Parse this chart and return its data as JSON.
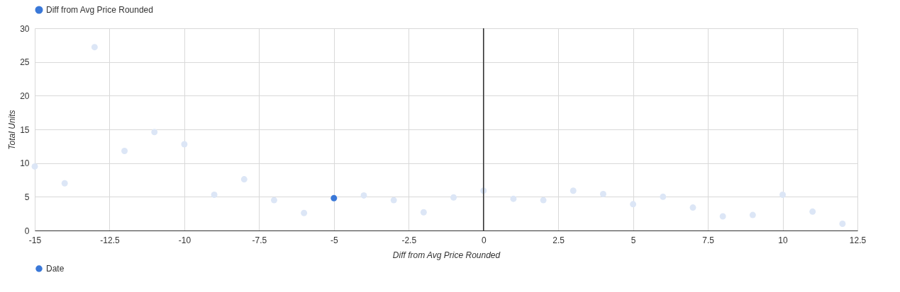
{
  "chart_data": {
    "type": "scatter",
    "xlabel": "Diff from Avg Price Rounded",
    "ylabel": "Total Units",
    "x": [
      -15,
      -14,
      -13,
      -12,
      -11,
      -10,
      -9,
      -8,
      -7,
      -6,
      -5,
      -4,
      -3,
      -2,
      -1,
      0,
      1,
      2,
      3,
      4,
      5,
      6,
      7,
      8,
      9,
      10,
      11,
      12
    ],
    "series": [
      {
        "name": "Diff from Avg Price Rounded",
        "color": "#3a78d8",
        "values": [
          9.5,
          7.0,
          27.2,
          11.8,
          14.6,
          12.8,
          5.3,
          7.6,
          4.5,
          2.6,
          4.8,
          5.2,
          4.5,
          2.7,
          4.9,
          5.9,
          4.7,
          4.5,
          5.9,
          5.4,
          3.9,
          5.0,
          3.4,
          2.1,
          2.3,
          5.3,
          2.8,
          1.0
        ],
        "colors": [
          "#dce6f6",
          "#dce6f6",
          "#dce6f6",
          "#dce6f6",
          "#dce6f6",
          "#dce6f6",
          "#dce6f6",
          "#dce6f6",
          "#dce6f6",
          "#dce6f6",
          "#3a78d8",
          "#dce6f6",
          "#dce6f6",
          "#dce6f6",
          "#dce6f6",
          "#dce6f6",
          "#dce6f6",
          "#dce6f6",
          "#dce6f6",
          "#dce6f6",
          "#dce6f6",
          "#dce6f6",
          "#dce6f6",
          "#dce6f6",
          "#dce6f6",
          "#dce6f6",
          "#dce6f6",
          "#dce6f6"
        ]
      }
    ],
    "xlim": [
      -15,
      12.5
    ],
    "xticks": [
      -15,
      -12.5,
      -10,
      -7.5,
      -5,
      -2.5,
      0,
      2.5,
      5,
      7.5,
      10,
      12.5
    ],
    "ylim": [
      0,
      30
    ],
    "yticks": [
      0,
      5,
      10,
      15,
      20,
      25,
      30
    ],
    "ref_lines": [
      {
        "axis": "x",
        "value": 0,
        "color": "#333333"
      }
    ],
    "annotations": [
      "Date"
    ],
    "grid": true,
    "legend": "top left",
    "marker": "circle"
  }
}
